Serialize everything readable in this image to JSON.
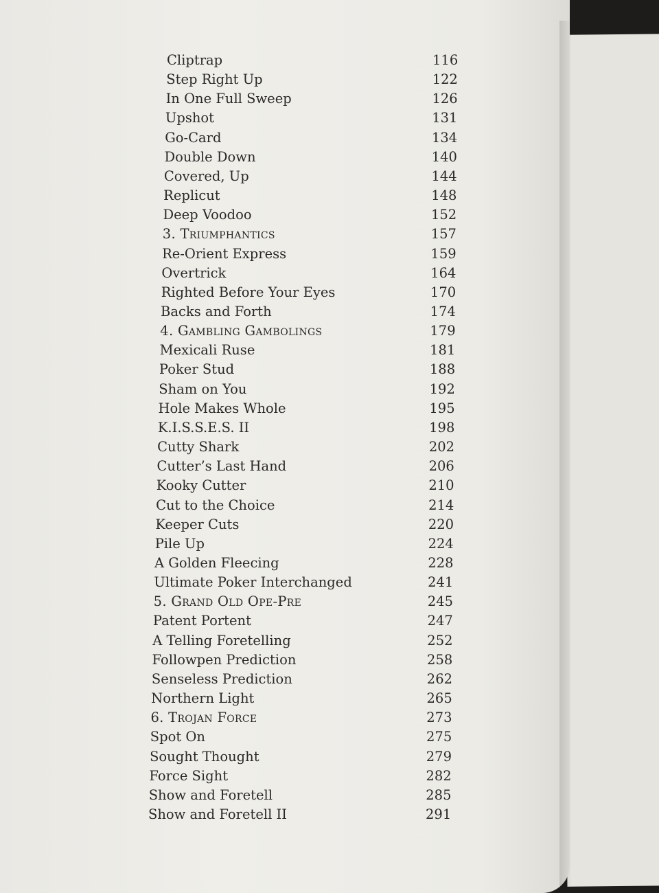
{
  "toc": [
    {
      "title": "Cliptrap",
      "page": "116"
    },
    {
      "title": "Step Right Up",
      "page": "122"
    },
    {
      "title": "In One Full Sweep",
      "page": "126"
    },
    {
      "title": "Upshot",
      "page": "131"
    },
    {
      "title": "Go-Card",
      "page": "134"
    },
    {
      "title": "Double Down",
      "page": "140"
    },
    {
      "title": "Covered, Up",
      "page": "144"
    },
    {
      "title": "Replicut",
      "page": "148"
    },
    {
      "title": "Deep Voodoo",
      "page": "152"
    },
    {
      "title": "3. Triumphantics",
      "page": "157",
      "section": true
    },
    {
      "title": "Re-Orient Express",
      "page": "159"
    },
    {
      "title": "Overtrick",
      "page": "164"
    },
    {
      "title": "Righted Before Your Eyes",
      "page": "170"
    },
    {
      "title": "Backs and Forth",
      "page": "174"
    },
    {
      "title": "4. Gambling Gambolings",
      "page": "179",
      "section": true
    },
    {
      "title": "Mexicali Ruse",
      "page": "181"
    },
    {
      "title": "Poker Stud",
      "page": "188"
    },
    {
      "title": "Sham on You",
      "page": "192"
    },
    {
      "title": "Hole Makes Whole",
      "page": "195"
    },
    {
      "title": "K.I.S.S.E.S. II",
      "page": "198"
    },
    {
      "title": "Cutty Shark",
      "page": "202"
    },
    {
      "title": "Cutter’s Last Hand",
      "page": "206"
    },
    {
      "title": "Kooky Cutter",
      "page": "210"
    },
    {
      "title": "Cut to the Choice",
      "page": "214"
    },
    {
      "title": "Keeper Cuts",
      "page": "220"
    },
    {
      "title": "Pile Up",
      "page": "224"
    },
    {
      "title": "A Golden Fleecing",
      "page": "228"
    },
    {
      "title": "Ultimate Poker Interchanged",
      "page": "241"
    },
    {
      "title": "5. Grand Old Ope-Pre",
      "page": "245",
      "section": true
    },
    {
      "title": "Patent Portent",
      "page": "247"
    },
    {
      "title": "A Telling Foretelling",
      "page": "252"
    },
    {
      "title": "Followpen Prediction",
      "page": "258"
    },
    {
      "title": "Senseless Prediction",
      "page": "262"
    },
    {
      "title": "Northern Light",
      "page": "265"
    },
    {
      "title": "6. Trojan Force",
      "page": "273",
      "section": true
    },
    {
      "title": "Spot On",
      "page": "275"
    },
    {
      "title": "Sought Thought",
      "page": "279"
    },
    {
      "title": "Force Sight",
      "page": "282"
    },
    {
      "title": "Show and Foretell",
      "page": "285"
    },
    {
      "title": "Show and Foretell II",
      "page": "291"
    }
  ]
}
